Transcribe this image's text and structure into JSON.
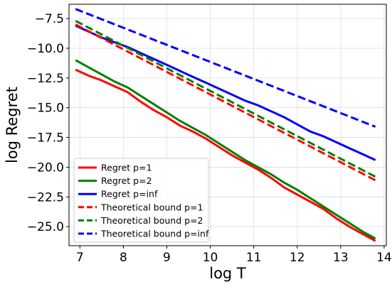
{
  "chart_data": {
    "type": "line",
    "xlabel": "log T",
    "ylabel": "log  Regret",
    "xlim": [
      6.75,
      14.05
    ],
    "ylim": [
      -26.6,
      -6.3
    ],
    "xticks": [
      7,
      8,
      9,
      10,
      11,
      12,
      13,
      14
    ],
    "xtick_labels": [
      "7",
      "8",
      "9",
      "10",
      "11",
      "12",
      "13",
      "14"
    ],
    "yticks": [
      -7.5,
      -10.0,
      -12.5,
      -15.0,
      -17.5,
      -20.0,
      -22.5,
      -25.0
    ],
    "ytick_labels": [
      "−7.5",
      "−10.0",
      "−12.5",
      "−15.0",
      "−17.5",
      "−20.0",
      "−22.5",
      "−25.0"
    ],
    "grid": true,
    "legend_position": "lower-left",
    "series": [
      {
        "name": "Regret p=1",
        "color": "#ff0000",
        "style": "solid",
        "x": [
          6.9,
          7.2,
          7.5,
          7.8,
          8.1,
          8.4,
          8.7,
          9.0,
          9.3,
          9.6,
          9.9,
          10.2,
          10.5,
          10.8,
          11.1,
          11.4,
          11.7,
          12.0,
          12.3,
          12.6,
          12.9,
          13.2,
          13.5,
          13.8
        ],
        "y": [
          -11.8,
          -12.3,
          -12.7,
          -13.2,
          -13.7,
          -14.5,
          -15.2,
          -15.8,
          -16.5,
          -17.0,
          -17.6,
          -18.3,
          -19.0,
          -19.6,
          -20.2,
          -20.9,
          -21.7,
          -22.3,
          -22.9,
          -23.5,
          -24.3,
          -25.0,
          -25.6,
          -26.2
        ]
      },
      {
        "name": "Regret p=2",
        "color": "#008000",
        "style": "solid",
        "x": [
          6.9,
          7.2,
          7.5,
          7.8,
          8.1,
          8.4,
          8.7,
          9.0,
          9.3,
          9.6,
          9.9,
          10.2,
          10.5,
          10.8,
          11.1,
          11.4,
          11.7,
          12.0,
          12.3,
          12.6,
          12.9,
          13.2,
          13.5,
          13.8
        ],
        "y": [
          -11.0,
          -11.6,
          -12.2,
          -12.8,
          -13.3,
          -14.0,
          -14.7,
          -15.4,
          -16.1,
          -16.7,
          -17.3,
          -18.0,
          -18.7,
          -19.4,
          -20.0,
          -20.6,
          -21.3,
          -21.9,
          -22.6,
          -23.3,
          -24.0,
          -24.7,
          -25.4,
          -26.0
        ]
      },
      {
        "name": "Regret p=inf",
        "color": "#0000ff",
        "style": "solid",
        "x": [
          6.9,
          7.2,
          7.5,
          7.8,
          8.1,
          8.4,
          8.7,
          9.0,
          9.3,
          9.6,
          9.9,
          10.2,
          10.5,
          10.8,
          11.1,
          11.4,
          11.7,
          12.0,
          12.3,
          12.6,
          12.9,
          13.2,
          13.5,
          13.8
        ],
        "y": [
          -8.1,
          -8.6,
          -9.1,
          -9.5,
          -9.9,
          -10.4,
          -10.9,
          -11.4,
          -11.9,
          -12.4,
          -12.9,
          -13.4,
          -13.9,
          -14.4,
          -14.8,
          -15.3,
          -15.8,
          -16.4,
          -17.0,
          -17.4,
          -17.9,
          -18.4,
          -18.9,
          -19.4
        ]
      },
      {
        "name": "Theoretical bound p=1",
        "color": "#ff0000",
        "style": "dashed",
        "x": [
          6.9,
          13.8
        ],
        "y": [
          -8.0,
          -21.1
        ]
      },
      {
        "name": "Theoretical bound p=2",
        "color": "#008000",
        "style": "dashed",
        "x": [
          6.9,
          13.8
        ],
        "y": [
          -7.7,
          -20.8
        ]
      },
      {
        "name": "Theoretical bound p=inf",
        "color": "#0000ff",
        "style": "dashed",
        "x": [
          6.9,
          13.8
        ],
        "y": [
          -6.7,
          -16.6
        ]
      }
    ]
  }
}
